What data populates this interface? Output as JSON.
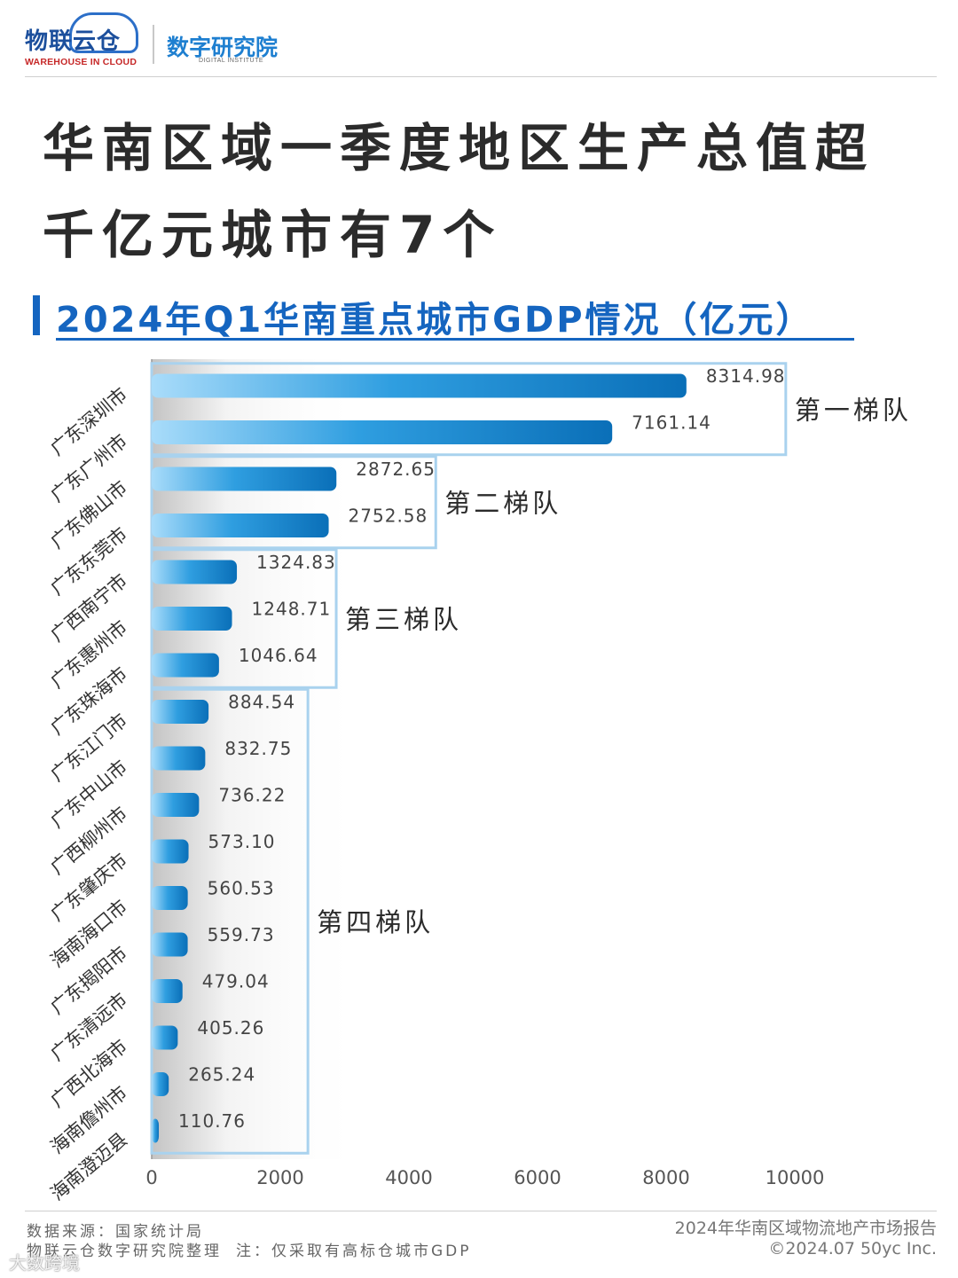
{
  "header": {
    "logo_text": "物联云仓",
    "logo_subtext": "WAREHOUSE IN CLOUD",
    "institute_name": "数字研究院",
    "institute_subtext": "DIGITAL INSTITUTE"
  },
  "title_line1": "华南区域一季度地区生产总值超",
  "title_line2": "千亿元城市有7个",
  "colors": {
    "accent": "#1565c0",
    "bar_dark": "#0a6fb8",
    "bar_light": "#a9dcfa",
    "bracket": "#a9d2ee"
  },
  "chart_data": {
    "type": "bar",
    "orientation": "horizontal",
    "title": "2024年Q1华南重点城市GDP情况（亿元）",
    "xlabel": "",
    "ylabel": "",
    "xlim": [
      0,
      10000
    ],
    "x_ticks": [
      "0",
      "2000",
      "4000",
      "6000",
      "8000",
      "10000"
    ],
    "categories": [
      "广东深圳市",
      "广东广州市",
      "广东佛山市",
      "广东东莞市",
      "广西南宁市",
      "广东惠州市",
      "广东珠海市",
      "广东江门市",
      "广东中山市",
      "广西柳州市",
      "广东肇庆市",
      "海南海口市",
      "广东揭阳市",
      "广东清远市",
      "广西北海市",
      "海南儋州市",
      "海南澄迈县"
    ],
    "values": [
      8314.98,
      7161.14,
      2872.65,
      2752.58,
      1324.83,
      1248.71,
      1046.64,
      884.54,
      832.75,
      736.22,
      573.1,
      560.53,
      559.73,
      479.04,
      405.26,
      265.24,
      110.76
    ],
    "value_labels": [
      "8314.98",
      "7161.14",
      "2872.65",
      "2752.58",
      "1324.83",
      "1248.71",
      "1046.64",
      "884.54",
      "832.75",
      "736.22",
      "573.10",
      "560.53",
      "559.73",
      "479.04",
      "405.26",
      "265.24",
      "110.76"
    ],
    "groups": [
      {
        "label": "第一梯队",
        "start": 0,
        "end": 1
      },
      {
        "label": "第二梯队",
        "start": 2,
        "end": 3
      },
      {
        "label": "第三梯队",
        "start": 4,
        "end": 6
      },
      {
        "label": "第四梯队",
        "start": 7,
        "end": 16
      }
    ],
    "grid": false,
    "legend": "none"
  },
  "footer": {
    "source": "数据来源：国家统计局",
    "compiler": "物联云仓数字研究院整理",
    "note": "注：仅采取有高标仓城市GDP",
    "report_name": "2024年华南区域物流地产市场报告",
    "copyright": "©2024.07 50yc Inc.",
    "watermark": "大数跨境"
  }
}
